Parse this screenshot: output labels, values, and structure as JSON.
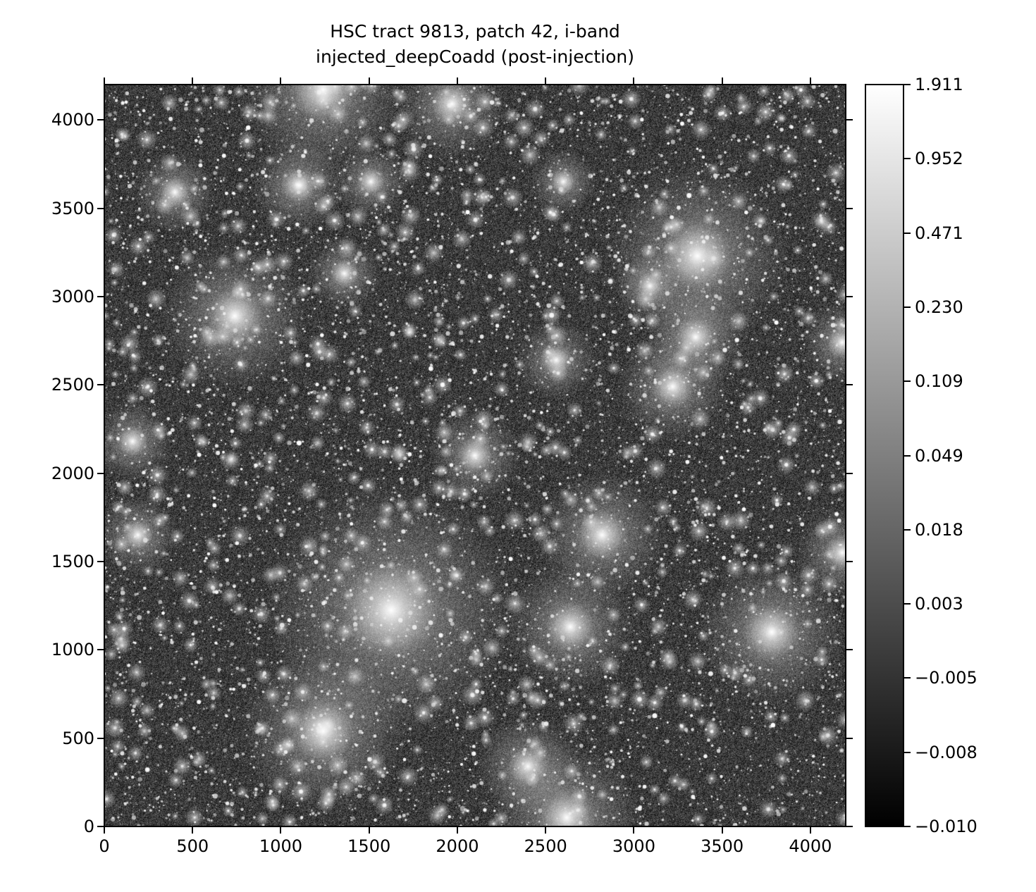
{
  "chart_data": {
    "type": "heatmap",
    "title": "HSC tract 9813, patch 42, i-band",
    "subtitle": "injected_deepCoadd (post-injection)",
    "xlabel": "",
    "ylabel": "",
    "xlim": [
      0,
      4200
    ],
    "ylim": [
      0,
      4200
    ],
    "x_ticks": [
      "0",
      "500",
      "1000",
      "1500",
      "2000",
      "2500",
      "3000",
      "3500",
      "4000"
    ],
    "y_ticks": [
      "0",
      "500",
      "1000",
      "1500",
      "2000",
      "2500",
      "3000",
      "3500",
      "4000"
    ],
    "colormap": "gray",
    "colorbar": {
      "range": [
        -0.01,
        1.911
      ],
      "scale": "nonlinear (asinh-like stretch)",
      "ticks": [
        "1.911",
        "0.952",
        "0.471",
        "0.230",
        "0.109",
        "0.049",
        "0.018",
        "0.003",
        "−0.005",
        "−0.008",
        "−0.010"
      ]
    },
    "grid": false,
    "content": "astronomical image of stars and galaxies"
  }
}
